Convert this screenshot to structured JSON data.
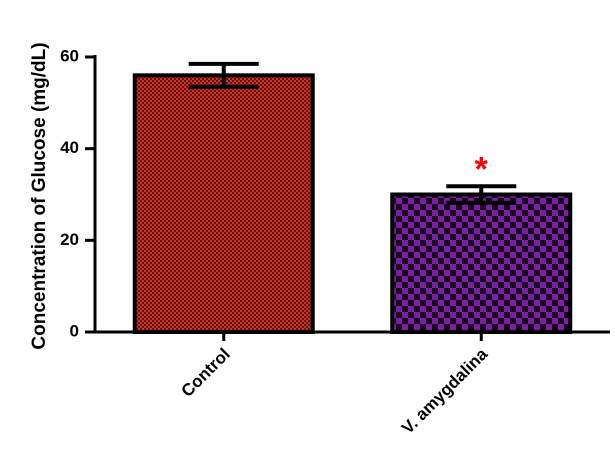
{
  "chart_data": {
    "type": "bar",
    "ylabel": "Concentration of Glucose (mg/dL)",
    "xlabel": "",
    "ylim": [
      0,
      60
    ],
    "yticks": [
      "0",
      "20",
      "40",
      "60"
    ],
    "categories": [
      "Control",
      "V. amygdalina"
    ],
    "values": [
      56,
      30
    ],
    "errors": [
      2.5,
      1.8
    ],
    "annotations": [
      "",
      "*"
    ],
    "colors": {
      "control_fill": "#c0392b",
      "control_pattern": "#6b0f0f",
      "treatment_fill": "#7b1fa2",
      "treatment_pattern": "#1a001f",
      "annotation": "#ff0000",
      "axis": "#000000"
    },
    "grid": false,
    "legend": "none"
  }
}
